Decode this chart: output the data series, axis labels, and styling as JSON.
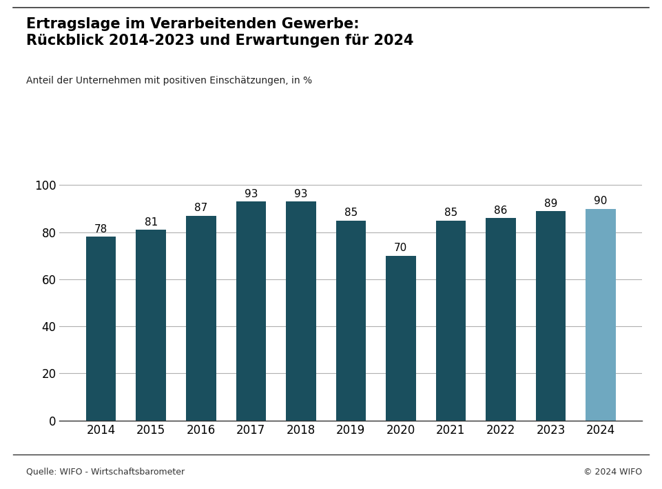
{
  "title_line1": "Ertragslage im Verarbeitenden Gewerbe:",
  "title_line2": "Rückblick 2014-2023 und Erwartungen für 2024",
  "subtitle": "Anteil der Unternehmen mit positiven Einschätzungen, in %",
  "years": [
    2014,
    2015,
    2016,
    2017,
    2018,
    2019,
    2020,
    2021,
    2022,
    2023,
    2024
  ],
  "values": [
    78,
    81,
    87,
    93,
    93,
    85,
    70,
    85,
    86,
    89,
    90
  ],
  "bar_colors": [
    "#1a4f5e",
    "#1a4f5e",
    "#1a4f5e",
    "#1a4f5e",
    "#1a4f5e",
    "#1a4f5e",
    "#1a4f5e",
    "#1a4f5e",
    "#1a4f5e",
    "#1a4f5e",
    "#6fa8c0"
  ],
  "ylim": [
    0,
    108
  ],
  "yticks": [
    0,
    20,
    40,
    60,
    80,
    100
  ],
  "background_color": "#ffffff",
  "source_left": "Quelle: WIFO - Wirtschaftsbarometer",
  "source_right": "© 2024 WIFO",
  "title_fontsize": 15,
  "subtitle_fontsize": 10,
  "tick_fontsize": 12,
  "source_fontsize": 9,
  "bar_label_fontsize": 11
}
